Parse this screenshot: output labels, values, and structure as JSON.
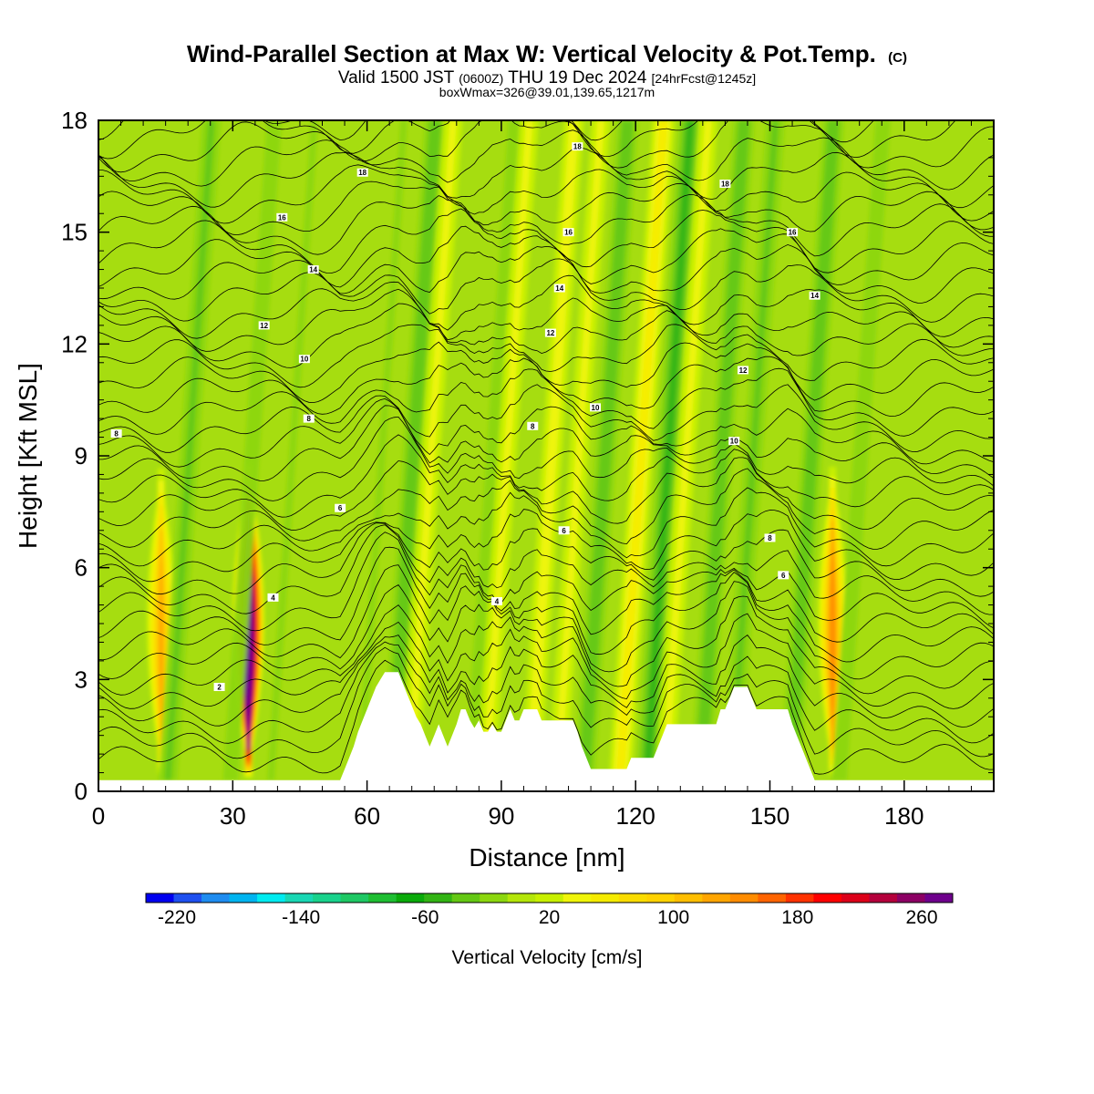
{
  "title": {
    "main": "Wind-Parallel Section at Max W: Vertical Velocity & Pot.Temp.",
    "mark": "(C)"
  },
  "subtitle": {
    "valid": "Valid 1500 JST",
    "utc": "(0600Z)",
    "date": "THU 19 Dec 2024",
    "fcst": "[24hrFcst@1245z]"
  },
  "subtitle2": "boxWmax=326@39.01,139.65,1217m",
  "chart_data": {
    "type": "heatmap",
    "xlabel": "Distance [nm]",
    "ylabel": "Height [Kft MSL]",
    "xlim": [
      0,
      200
    ],
    "ylim": [
      0,
      18
    ],
    "x_ticks": [
      "0",
      "30",
      "60",
      "90",
      "120",
      "150",
      "180"
    ],
    "y_ticks": [
      "0",
      "3",
      "6",
      "9",
      "12",
      "15",
      "18"
    ],
    "x_tick_values": [
      0,
      30,
      60,
      90,
      120,
      150,
      180
    ],
    "y_tick_values": [
      0,
      3,
      6,
      9,
      12,
      15,
      18
    ],
    "colorbar": {
      "label": "Vertical Velocity [cm/s]",
      "tick_labels": [
        "-220",
        "-140",
        "-60",
        "20",
        "100",
        "180",
        "260"
      ],
      "tick_values": [
        -220,
        -140,
        -60,
        20,
        100,
        180,
        260
      ],
      "bounds": [
        -240,
        280
      ],
      "colors": [
        "#0000f0",
        "#1e50f0",
        "#1e8cf0",
        "#00b4f0",
        "#00ebf0",
        "#19d7b4",
        "#19d28c",
        "#1ec864",
        "#1ebe32",
        "#0aaa0a",
        "#32b414",
        "#64c814",
        "#8cd70f",
        "#b4e60a",
        "#c8f000",
        "#f0f50a",
        "#f5eb00",
        "#fadc00",
        "#ffd200",
        "#ffbe00",
        "#ffa500",
        "#ff8c00",
        "#ff6400",
        "#ff3200",
        "#ff0000",
        "#dc0019",
        "#b4003c",
        "#8c0064",
        "#6e008c"
      ]
    },
    "vertical_velocity_features": [
      {
        "x": 14,
        "sign": "up",
        "peak_cm_s": 120
      },
      {
        "x": 17,
        "sign": "down",
        "peak_cm_s": -40
      },
      {
        "x": 33.5,
        "sign": "up",
        "peak_cm_s": 326
      },
      {
        "x": 31,
        "sign": "down",
        "peak_cm_s": -30
      },
      {
        "x": 40,
        "sign": "down",
        "peak_cm_s": -20
      },
      {
        "x": 60,
        "sign": "down",
        "peak_cm_s": -20
      },
      {
        "x": 67,
        "sign": "down",
        "peak_cm_s": -50
      },
      {
        "x": 71,
        "sign": "up",
        "peak_cm_s": 40
      },
      {
        "x": 85,
        "sign": "down",
        "peak_cm_s": -30
      },
      {
        "x": 88,
        "sign": "up",
        "peak_cm_s": 40
      },
      {
        "x": 98,
        "sign": "up",
        "peak_cm_s": 45
      },
      {
        "x": 104,
        "sign": "up",
        "peak_cm_s": 40
      },
      {
        "x": 110,
        "sign": "down",
        "peak_cm_s": -50
      },
      {
        "x": 118,
        "sign": "up",
        "peak_cm_s": 60
      },
      {
        "x": 124,
        "sign": "down",
        "peak_cm_s": -60
      },
      {
        "x": 128,
        "sign": "up",
        "peak_cm_s": 40
      },
      {
        "x": 136,
        "sign": "down",
        "peak_cm_s": -50
      },
      {
        "x": 143,
        "sign": "down",
        "peak_cm_s": -40
      },
      {
        "x": 156,
        "sign": "down",
        "peak_cm_s": -50
      },
      {
        "x": 164,
        "sign": "up",
        "peak_cm_s": 140
      },
      {
        "x": 167,
        "sign": "down",
        "peak_cm_s": -30
      }
    ],
    "theta_contour_labels": [
      {
        "text": "2",
        "x": 27,
        "y": 2.8
      },
      {
        "text": "4",
        "x": 39,
        "y": 5.2
      },
      {
        "text": "4",
        "x": 89,
        "y": 5.1
      },
      {
        "text": "6",
        "x": 54,
        "y": 7.6
      },
      {
        "text": "6",
        "x": 104,
        "y": 7.0
      },
      {
        "text": "6",
        "x": 153,
        "y": 5.8
      },
      {
        "text": "8",
        "x": 4,
        "y": 9.6
      },
      {
        "text": "8",
        "x": 47,
        "y": 10.0
      },
      {
        "text": "8",
        "x": 97,
        "y": 9.8
      },
      {
        "text": "8",
        "x": 150,
        "y": 6.8
      },
      {
        "text": "10",
        "x": 46,
        "y": 11.6
      },
      {
        "text": "10",
        "x": 111,
        "y": 10.3
      },
      {
        "text": "10",
        "x": 142,
        "y": 9.4
      },
      {
        "text": "12",
        "x": 37,
        "y": 12.5
      },
      {
        "text": "12",
        "x": 101,
        "y": 12.3
      },
      {
        "text": "12",
        "x": 144,
        "y": 11.3
      },
      {
        "text": "14",
        "x": 48,
        "y": 14.0
      },
      {
        "text": "14",
        "x": 103,
        "y": 13.5
      },
      {
        "text": "14",
        "x": 160,
        "y": 13.3
      },
      {
        "text": "16",
        "x": 41,
        "y": 15.4
      },
      {
        "text": "16",
        "x": 105,
        "y": 15.0
      },
      {
        "text": "16",
        "x": 155,
        "y": 15.0
      },
      {
        "text": "18",
        "x": 59,
        "y": 16.6
      },
      {
        "text": "18",
        "x": 107,
        "y": 17.3
      },
      {
        "text": "18",
        "x": 140,
        "y": 16.3
      }
    ],
    "terrain": {
      "x": [
        0,
        54,
        55,
        56,
        57,
        58,
        59,
        60,
        61,
        62,
        63,
        64,
        65,
        66,
        67,
        68,
        69,
        70,
        71,
        72,
        73,
        74,
        75,
        76,
        77,
        78,
        79,
        80,
        81,
        82,
        83,
        84,
        85,
        86,
        87,
        88,
        89,
        90,
        91,
        92,
        93,
        94,
        95,
        96,
        97,
        98,
        99,
        100,
        101,
        102,
        103,
        104,
        105,
        106,
        107,
        108,
        109,
        110,
        111,
        112,
        113,
        114,
        115,
        116,
        117,
        118,
        119,
        120,
        121,
        122,
        123,
        124,
        125,
        126,
        127,
        128,
        129,
        130,
        131,
        132,
        133,
        134,
        135,
        136,
        137,
        138,
        139,
        140,
        141,
        142,
        143,
        144,
        145,
        146,
        147,
        148,
        149,
        150,
        151,
        152,
        153,
        154,
        155,
        156,
        157,
        158,
        159,
        160,
        161,
        162,
        200
      ],
      "height_kft": [
        0.3,
        0.3,
        0.6,
        0.9,
        1.2,
        1.6,
        1.9,
        2.2,
        2.5,
        2.8,
        3.0,
        3.2,
        3.2,
        3.2,
        3.2,
        2.9,
        2.6,
        2.3,
        2.0,
        1.8,
        1.5,
        1.2,
        1.5,
        1.8,
        1.5,
        1.2,
        1.5,
        1.8,
        2.2,
        2.2,
        1.9,
        1.7,
        1.9,
        1.6,
        1.6,
        1.8,
        1.6,
        1.6,
        1.9,
        2.2,
        1.9,
        1.9,
        2.2,
        2.2,
        2.2,
        2.2,
        1.9,
        1.9,
        1.9,
        1.9,
        1.9,
        1.9,
        1.9,
        1.9,
        1.6,
        1.2,
        0.9,
        0.6,
        0.6,
        0.6,
        0.6,
        0.6,
        0.6,
        0.6,
        0.6,
        0.6,
        0.9,
        0.9,
        0.9,
        0.9,
        0.9,
        0.9,
        1.2,
        1.5,
        1.8,
        1.8,
        1.8,
        1.8,
        1.8,
        1.8,
        1.8,
        1.8,
        1.8,
        1.8,
        1.8,
        1.8,
        2.2,
        2.2,
        2.5,
        2.8,
        2.8,
        2.8,
        2.8,
        2.5,
        2.2,
        2.2,
        2.2,
        2.2,
        2.2,
        2.2,
        2.2,
        2.2,
        1.8,
        1.5,
        1.2,
        0.9,
        0.6,
        0.3,
        0.3,
        0.3,
        0.3
      ]
    }
  }
}
